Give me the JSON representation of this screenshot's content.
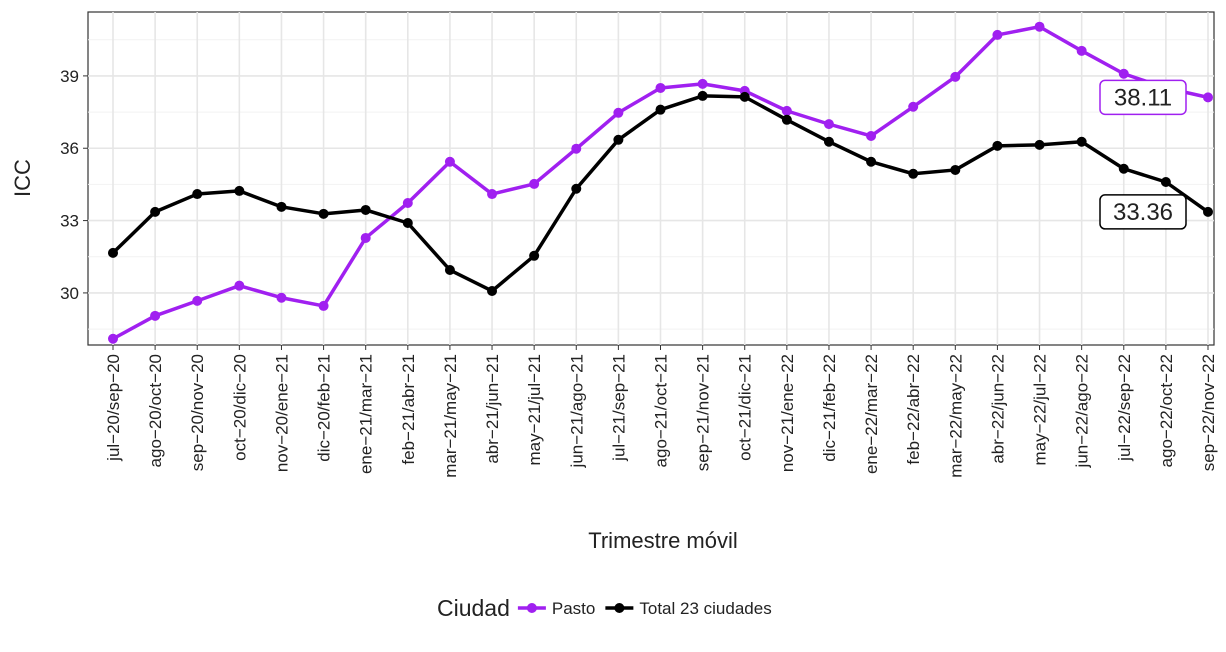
{
  "chart_data": {
    "type": "line",
    "x_label": "Trimestre móvil",
    "y_label": "ICC",
    "legend_title": "Ciudad",
    "categories": [
      "jul−20/sep−20",
      "ago−20/oct−20",
      "sep−20/nov−20",
      "oct−20/dic−20",
      "nov−20/ene−21",
      "dic−20/feb−21",
      "ene−21/mar−21",
      "feb−21/abr−21",
      "mar−21/may−21",
      "abr−21/jun−21",
      "may−21/jul−21",
      "jun−21/ago−21",
      "jul−21/sep−21",
      "ago−21/oct−21",
      "sep−21/nov−21",
      "oct−21/dic−21",
      "nov−21/ene−22",
      "dic−21/feb−22",
      "ene−22/mar−22",
      "feb−22/abr−22",
      "mar−22/may−22",
      "abr−22/jun−22",
      "may−22/jul−22",
      "jun−22/ago−22",
      "jul−22/sep−22",
      "ago−22/oct−22",
      "sep−22/nov−22"
    ],
    "series": [
      {
        "name": "Pasto",
        "color": "#a020f0",
        "values": [
          28.1,
          29.05,
          29.67,
          30.3,
          29.8,
          29.46,
          32.28,
          33.73,
          35.44,
          34.1,
          34.52,
          35.98,
          37.47,
          38.5,
          38.67,
          38.38,
          37.55,
          37.0,
          36.51,
          37.72,
          38.96,
          40.7,
          41.04,
          40.04,
          39.09,
          38.5,
          38.11
        ]
      },
      {
        "name": "Total 23 ciudades",
        "color": "#000000",
        "values": [
          31.66,
          33.36,
          34.1,
          34.23,
          33.57,
          33.28,
          33.44,
          32.9,
          30.95,
          30.08,
          31.54,
          34.32,
          36.35,
          37.6,
          38.17,
          38.13,
          37.18,
          36.27,
          35.44,
          34.94,
          35.1,
          36.1,
          36.14,
          36.27,
          35.15,
          34.6,
          33.36
        ]
      }
    ],
    "ylim": [
      27.84,
      41.65
    ],
    "yticks": [
      30,
      33,
      36,
      39
    ],
    "grid": true,
    "legend": "bottom"
  }
}
